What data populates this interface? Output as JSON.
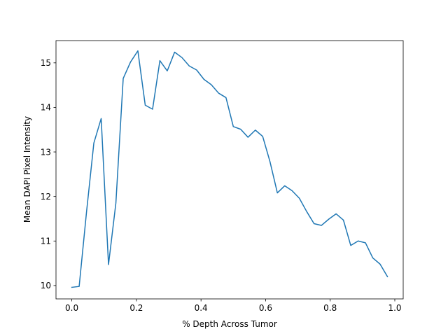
{
  "chart_data": {
    "type": "line",
    "title": "",
    "xlabel": "% Depth Across Tumor",
    "ylabel": "Mean DAPI Pixel Intensity",
    "xlim": [
      -0.049,
      1.026
    ],
    "ylim": [
      9.7,
      15.5
    ],
    "x_ticks": [
      0.0,
      0.2,
      0.4,
      0.6,
      0.8,
      1.0
    ],
    "x_tick_labels": [
      "0.0",
      "0.2",
      "0.4",
      "0.6",
      "0.8",
      "1.0"
    ],
    "y_ticks": [
      10,
      11,
      12,
      13,
      14,
      15
    ],
    "y_tick_labels": [
      "10",
      "11",
      "12",
      "13",
      "14",
      "15"
    ],
    "grid": false,
    "series": [
      {
        "color": "#1f77b4",
        "x": [
          0.0,
          0.0227,
          0.0455,
          0.0682,
          0.0909,
          0.1136,
          0.1364,
          0.1591,
          0.1818,
          0.2045,
          0.2273,
          0.25,
          0.2727,
          0.2955,
          0.3182,
          0.3409,
          0.3636,
          0.3864,
          0.4091,
          0.4318,
          0.4545,
          0.4773,
          0.5,
          0.5227,
          0.5455,
          0.5682,
          0.5909,
          0.6136,
          0.6364,
          0.6591,
          0.6818,
          0.7045,
          0.7273,
          0.75,
          0.7727,
          0.7955,
          0.8182,
          0.8409,
          0.8636,
          0.8864,
          0.9091,
          0.9318,
          0.9545,
          0.9773
        ],
        "y": [
          9.96,
          9.98,
          11.65,
          13.2,
          13.75,
          10.47,
          11.85,
          14.65,
          15.02,
          15.27,
          14.05,
          13.96,
          15.05,
          14.82,
          15.24,
          15.12,
          14.93,
          14.84,
          14.63,
          14.51,
          14.32,
          14.22,
          13.57,
          13.51,
          13.33,
          13.49,
          13.35,
          12.78,
          12.08,
          12.24,
          12.13,
          11.96,
          11.66,
          11.39,
          11.35,
          11.49,
          11.61,
          11.47,
          10.9,
          11.0,
          10.96,
          10.62,
          10.48,
          10.2
        ]
      }
    ]
  }
}
